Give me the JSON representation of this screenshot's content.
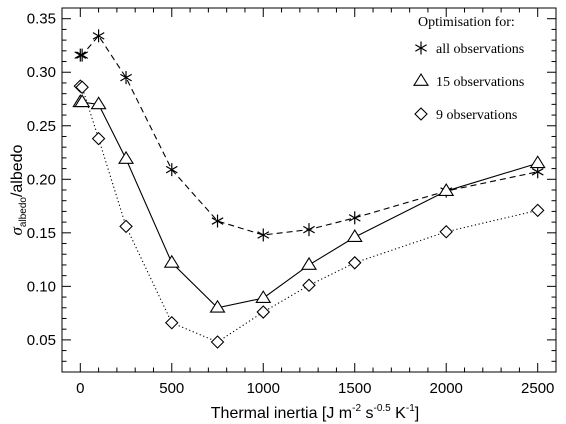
{
  "chart_data": {
    "type": "line",
    "title": "",
    "xlabel": "Thermal inertia [J m",
    "xlabel_parts": {
      "base1": "Thermal inertia [J m",
      "sup1": "-2",
      "base2": " s",
      "sup2": "-0.5",
      "base3": " K",
      "sup3": "-1",
      "base4": "]"
    },
    "ylabel_parts": {
      "sigma": "σ",
      "sub": "albedo",
      "rest": "/albedo"
    },
    "xlim": [
      -100,
      2600
    ],
    "ylim": [
      0.02,
      0.36
    ],
    "xticks": [
      0,
      500,
      1000,
      1500,
      2000,
      2500
    ],
    "xtick_labels": [
      "0",
      "500",
      "1000",
      "1500",
      "2000",
      "2500"
    ],
    "yticks": [
      0.05,
      0.1,
      0.15,
      0.2,
      0.25,
      0.3,
      0.35
    ],
    "ytick_labels": [
      "0.05",
      "0.10",
      "0.15",
      "0.20",
      "0.25",
      "0.30",
      "0.35"
    ],
    "legend_title": "Optimisation for:",
    "legend_position": "top-right",
    "series": [
      {
        "name": "all observations",
        "marker": "asterisk",
        "line": "dashed",
        "x": [
          0,
          10,
          100,
          250,
          500,
          750,
          1000,
          1250,
          1500,
          2000,
          2500
        ],
        "y": [
          0.316,
          0.316,
          0.334,
          0.295,
          0.209,
          0.161,
          0.148,
          0.153,
          0.164,
          0.189,
          0.207
        ]
      },
      {
        "name": "15 observations",
        "marker": "triangle",
        "line": "solid",
        "x": [
          0,
          10,
          100,
          250,
          500,
          750,
          1000,
          1250,
          1500,
          2000,
          2500
        ],
        "y": [
          0.272,
          0.272,
          0.27,
          0.219,
          0.122,
          0.08,
          0.089,
          0.12,
          0.146,
          0.189,
          0.215
        ]
      },
      {
        "name": "9 observations",
        "marker": "diamond",
        "line": "dotted",
        "x": [
          0,
          10,
          100,
          250,
          500,
          750,
          1000,
          1250,
          1500,
          2000,
          2500
        ],
        "y": [
          0.287,
          0.286,
          0.238,
          0.156,
          0.066,
          0.048,
          0.076,
          0.101,
          0.122,
          0.151,
          0.171
        ]
      }
    ]
  }
}
